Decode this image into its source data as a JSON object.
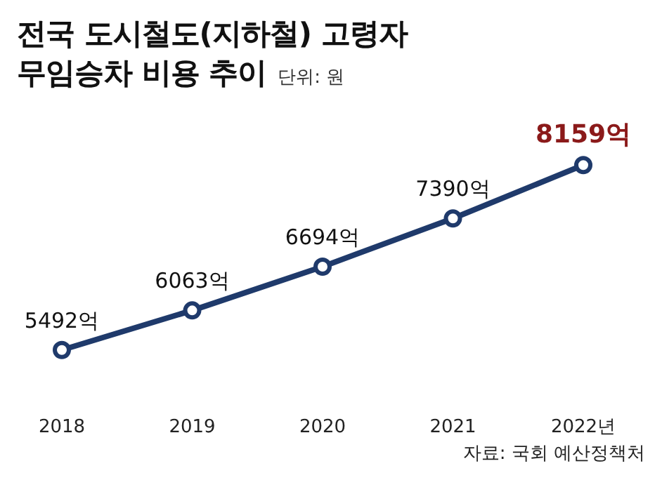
{
  "chart_data": {
    "type": "line",
    "title": "전국 도시철도(지하철) 고령자 무임승차 비용 추이",
    "subtitle": "단위: 원",
    "categories": [
      "2018",
      "2019",
      "2020",
      "2021",
      "2022년"
    ],
    "series": [
      {
        "color": "#1f3a6b",
        "values": [
          5492,
          6063,
          6694,
          7390,
          8159
        ],
        "value_labels": [
          "5492억",
          "6063억",
          "6694억",
          "7390억",
          "8159억"
        ]
      }
    ],
    "marker": "circle",
    "annotations": [
      "자료: 국회 예산정책처"
    ]
  }
}
